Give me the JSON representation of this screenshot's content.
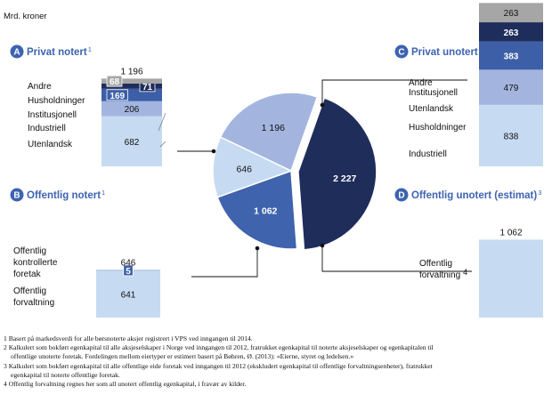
{
  "unit_label": "Mrd. kroner",
  "chart_data": [
    {
      "type": "bar",
      "stacked": true,
      "marker": "A",
      "title": "Privat notert",
      "note_ref": "1",
      "total_label": "1 196",
      "segments": [
        {
          "label": "Utenlandsk",
          "value": 682,
          "value_label": "682",
          "color": "#c6dbf2"
        },
        {
          "label": "Industriell",
          "value": 206,
          "value_label": "206",
          "color": "#a3b5df"
        },
        {
          "label": "Institusjonell",
          "value": 169,
          "value_label": "169",
          "color": "#3d5fa8"
        },
        {
          "label": "Husholdninger",
          "value": 71,
          "value_label": "71",
          "color": "#1e2d5c"
        },
        {
          "label": "Andre",
          "value": 68,
          "value_label": "68",
          "color": "#a6a6a6"
        }
      ]
    },
    {
      "type": "bar",
      "stacked": true,
      "marker": "B",
      "title": "Offentlig notert",
      "note_ref": "1",
      "total_label": "646",
      "segments": [
        {
          "label": "Offentlig forvaltning",
          "value": 641,
          "value_label": "641",
          "color": "#c6dbf2"
        },
        {
          "label": "Offentlig kontrollerte foretak",
          "value": 5,
          "value_label": "5",
          "color": "#3d5fa8"
        }
      ]
    },
    {
      "type": "bar",
      "stacked": true,
      "marker": "C",
      "title": "Privat unotert (estimat)",
      "note_ref": "2",
      "total_label": "2 227",
      "segments": [
        {
          "label": "Industriell",
          "value": 838,
          "value_label": "838",
          "color": "#c6dbf2"
        },
        {
          "label": "Husholdninger",
          "value": 479,
          "value_label": "479",
          "color": "#a3b5df"
        },
        {
          "label": "Utenlandsk",
          "value": 383,
          "value_label": "383",
          "color": "#3d5fa8"
        },
        {
          "label": "Institusjonell",
          "value": 263,
          "value_label": "263",
          "color": "#1e2d5c"
        },
        {
          "label": "Andre",
          "value": 263,
          "value_label": "263",
          "color": "#a6a6a6"
        }
      ]
    },
    {
      "type": "bar",
      "stacked": true,
      "marker": "D",
      "title": "Offentlig unotert (estimat)",
      "note_ref": "3",
      "total_label": "1 062",
      "segments": [
        {
          "label": "Offentlig forvaltning",
          "value": 1062,
          "value_label": "",
          "color": "#c6dbf2",
          "note_ref": "4"
        }
      ]
    },
    {
      "type": "pie",
      "slices": [
        {
          "key": "C",
          "value": 2227,
          "label": "2 227",
          "color": "#1f2d5a"
        },
        {
          "key": "D",
          "value": 1062,
          "label": "1 062",
          "color": "#3f63ad"
        },
        {
          "key": "B",
          "value": 646,
          "label": "646",
          "color": "#c6dbf2"
        },
        {
          "key": "A",
          "value": 1196,
          "label": "1 196",
          "color": "#a3b5df"
        }
      ]
    }
  ],
  "footnotes": [
    "1 Basert på markedsverdi for alle børsnoterte aksjer registrert i VPS ved inngangen til 2014.",
    "2 Kalkulert som bokført egenkapital til alle aksjeselskaper i Norge ved inngangen til 2012, fratrukket egenkapital til noterte aksjeselskaper og egenkapitalen til",
    "offentlige unoterte foretak. Fordelingen mellom eiertyper er estimert basert på Bøhren, Ø. (2013): «Eierne, styret og ledelsen.»",
    "3 Kalkulert som bokført egenkapital til alle offentlige eide foretak ved inngangen til 2012 (ekskludert egenkapital til offentlige forvaltningsenheter), fratrukket",
    "egenkapital til noterte offentlige foretak.",
    "4 Offentlig forvaltning regnes her som all unotert offentlig egenkapital, i fravær av kilder."
  ]
}
